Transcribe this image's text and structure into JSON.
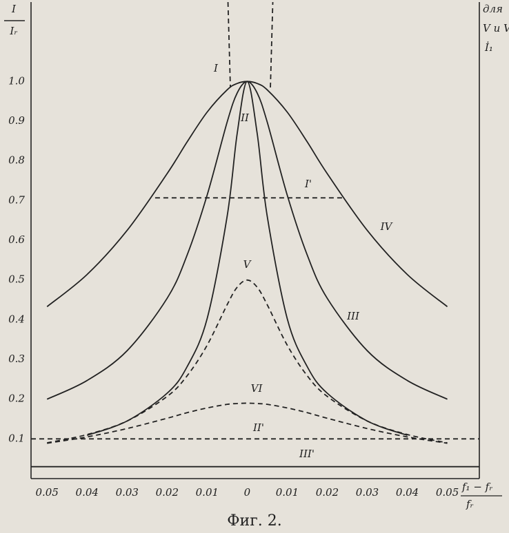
{
  "chart_data": {
    "type": "line",
    "y_label": {
      "numerator": "I",
      "denominator": "Iᵣ"
    },
    "x_label": {
      "numerator": "f₁ − fᵣ",
      "denominator": "fᵣ"
    },
    "annotation": [
      "для",
      "V и VI",
      "İ₁"
    ],
    "caption": "Фиг. 2.",
    "xlim": [
      -0.054,
      0.058
    ],
    "ylim": [
      0,
      1.2
    ],
    "xticks": [
      {
        "value": -0.05,
        "label": "0.05"
      },
      {
        "value": -0.04,
        "label": "0.04"
      },
      {
        "value": -0.03,
        "label": "0.03"
      },
      {
        "value": -0.02,
        "label": "0.02"
      },
      {
        "value": -0.01,
        "label": "0.01"
      },
      0,
      0.01,
      0.02,
      0.03,
      0.04,
      0.05
    ],
    "yticks": [
      0.1,
      0.2,
      0.3,
      0.4,
      0.5,
      0.6,
      0.7,
      0.8,
      0.9,
      {
        "value": 1,
        "label": "1.0"
      }
    ],
    "grid": false,
    "x": [
      -0.05,
      -0.04,
      -0.03,
      -0.02,
      -0.015,
      -0.01,
      -0.005,
      -0.0025,
      0,
      0.0025,
      0.005,
      0.01,
      0.015,
      0.02,
      0.03,
      0.04,
      0.05
    ],
    "series": [
      {
        "name": "I",
        "color": "#222",
        "dashed": true,
        "x": [
          -0.0048,
          -0.0042,
          0,
          0.0058,
          0.0064
        ],
        "values": [
          1.2,
          0.985,
          null,
          0.985,
          1.2
        ]
      },
      {
        "name": "I'",
        "color": "#222",
        "dashed": true,
        "x": [
          -0.023,
          0.024
        ],
        "values": [
          0.707,
          0.707
        ]
      },
      {
        "name": "II",
        "color": "#222",
        "dashed": false,
        "values": [
          null,
          0.109,
          0.145,
          0.215,
          0.282,
          0.403,
          0.661,
          0.869,
          1,
          0.869,
          0.661,
          0.403,
          0.282,
          0.215,
          0.145,
          0.109,
          null
        ]
      },
      {
        "name": "II'",
        "color": "#222",
        "dashed": true,
        "x": [
          -0.054,
          0.058
        ],
        "values": [
          0.1,
          0.1
        ]
      },
      {
        "name": "III",
        "color": "#222",
        "dashed": false,
        "values": [
          0.2,
          0.247,
          0.322,
          0.454,
          0.563,
          0.714,
          0.898,
          0.971,
          1,
          0.971,
          0.898,
          0.714,
          0.563,
          0.454,
          0.322,
          0.247,
          0.2
        ]
      },
      {
        "name": "III'",
        "color": "#222",
        "dashed": false,
        "x": [
          -0.054,
          0.058
        ],
        "values": [
          0.03,
          0.03
        ]
      },
      {
        "name": "IV",
        "color": "#222",
        "dashed": false,
        "values": [
          0.433,
          0.514,
          0.625,
          0.768,
          0.848,
          0.923,
          0.979,
          0.995,
          1,
          0.995,
          0.979,
          0.923,
          0.848,
          0.768,
          0.625,
          0.514,
          0.433
        ]
      },
      {
        "name": "V",
        "color": "#222",
        "dashed": true,
        "values": [
          0.09,
          0.111,
          0.145,
          0.207,
          0.259,
          0.336,
          0.438,
          0.482,
          0.5,
          0.482,
          0.438,
          0.336,
          0.259,
          0.207,
          0.145,
          0.111,
          0.09
        ]
      },
      {
        "name": "VI",
        "color": "#222",
        "dashed": true,
        "values": [
          0.089,
          0.105,
          0.126,
          0.152,
          0.166,
          0.178,
          0.187,
          0.189,
          0.19,
          0.189,
          0.187,
          0.178,
          0.166,
          0.152,
          0.126,
          0.105,
          0.089
        ]
      }
    ]
  }
}
